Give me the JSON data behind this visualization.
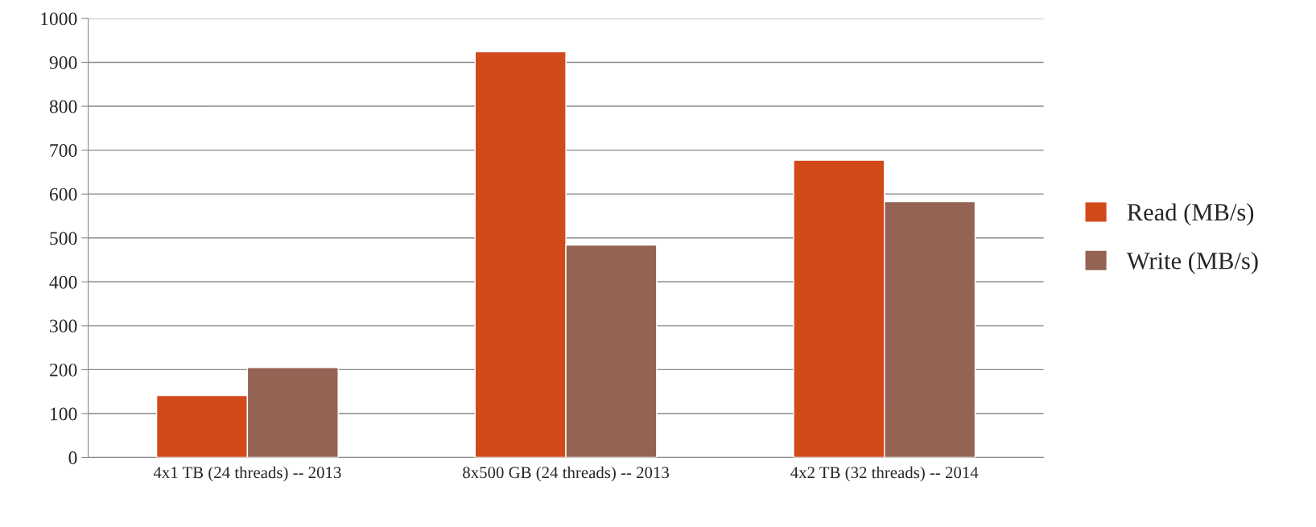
{
  "chart_data": {
    "type": "bar",
    "categories": [
      "4x1 TB (24 threads) -- 2013",
      "8x500 GB (24 threads) -- 2013",
      "4x2 TB (32 threads) -- 2014"
    ],
    "series": [
      {
        "name": "Read (MB/s)",
        "color": "#d2491a",
        "values": [
          141,
          924,
          677
        ]
      },
      {
        "name": "Write (MB/s)",
        "color": "#946353",
        "values": [
          205,
          484,
          583
        ]
      }
    ],
    "ylim": [
      0,
      1000
    ],
    "yticks": [
      0,
      100,
      200,
      300,
      400,
      500,
      600,
      700,
      800,
      900,
      1000
    ],
    "grid": "y",
    "legend": "right"
  }
}
